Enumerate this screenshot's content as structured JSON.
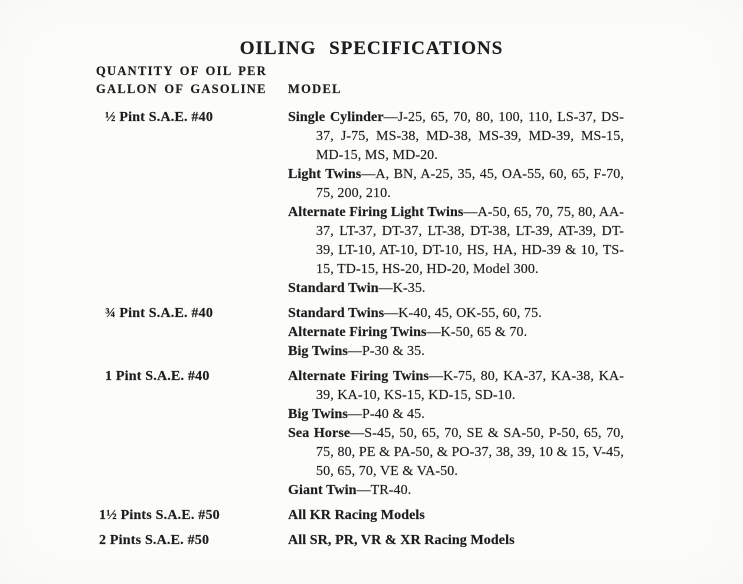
{
  "title": "OILING SPECIFICATIONS",
  "header": {
    "quantity_line1": "QUANTITY OF OIL PER",
    "quantity_line2": "GALLON OF GASOLINE",
    "model": "MODEL"
  },
  "rows": [
    {
      "quantity": "½ Pint S.A.E. #40",
      "models": [
        {
          "series": "Single Cylinder",
          "codes": "—J-25, 65, 70, 80, 100, 110, LS-37, DS-37, J-75, MS-38, MD-38, MS-39, MD-39, MS-15, MD-15, MS, MD-20."
        },
        {
          "series": "Light Twins",
          "codes": "—A, BN, A-25, 35, 45, OA-55, 60, 65, F-70, 75, 200, 210."
        },
        {
          "series": "Alternate Firing Light Twins",
          "codes": "—A-50, 65, 70, 75, 80, AA-37, LT-37, DT-37, LT-38, DT-38, LT-39, AT-39, DT-39, LT-10, AT-10, DT-10, HS, HA, HD-39 & 10, TS-15, TD-15, HS-20, HD-20, Model 300."
        },
        {
          "series": "Standard Twin",
          "codes": "—K-35."
        }
      ]
    },
    {
      "quantity": "¾ Pint S.A.E. #40",
      "models": [
        {
          "series": "Standard Twins",
          "codes": "—K-40, 45, OK-55, 60, 75."
        },
        {
          "series": "Alternate Firing Twins",
          "codes": "—K-50, 65 & 70."
        },
        {
          "series": "Big Twins",
          "codes": "—P-30 & 35."
        }
      ]
    },
    {
      "quantity": "1 Pint S.A.E. #40",
      "models": [
        {
          "series": "Alternate Firing Twins",
          "codes": "—K-75, 80, KA-37, KA-38, KA-39, KA-10, KS-15, KD-15, SD-10."
        },
        {
          "series": "Big Twins",
          "codes": "—P-40 & 45."
        },
        {
          "series": "Sea Horse",
          "codes": "—S-45, 50, 65, 70, SE & SA-50, P-50, 65, 70, 75, 80, PE & PA-50, & PO-37, 38, 39, 10 & 15, V-45, 50, 65, 70, VE & VA-50."
        },
        {
          "series": "Giant Twin",
          "codes": "—TR-40."
        }
      ]
    },
    {
      "quantity": "1½ Pints S.A.E. #50",
      "models": [
        {
          "series": "All KR Racing Models",
          "codes": ""
        }
      ]
    },
    {
      "quantity": "2 Pints S.A.E. #50",
      "models": [
        {
          "series": "All SR, PR, VR & XR Racing Models",
          "codes": ""
        }
      ]
    }
  ],
  "colors": {
    "paper": "#fcfcfa",
    "ink": "#1d1d1d"
  }
}
